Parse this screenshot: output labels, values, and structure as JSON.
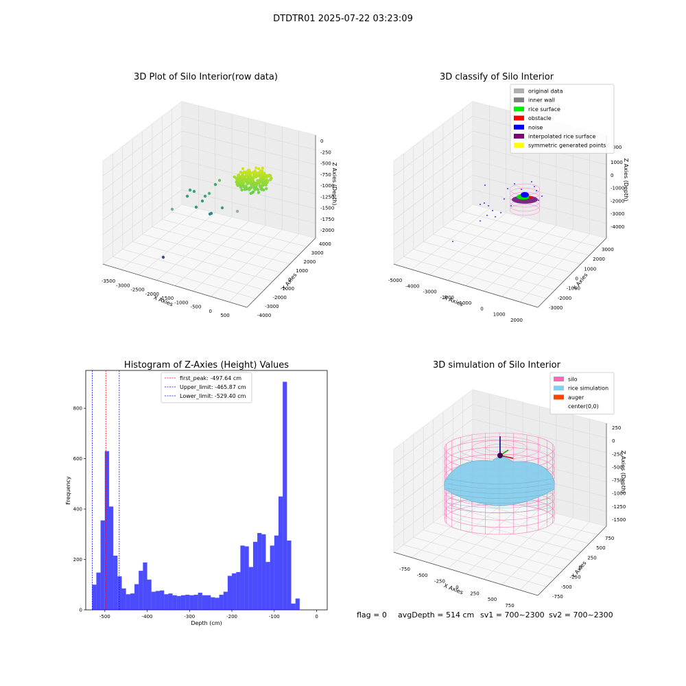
{
  "suptitle": "DTDTR01 2025-07-22 03:23:09",
  "panels": {
    "raw": {
      "title": "3D Plot of Silo Interior(row data)",
      "xlabel": "X Axies",
      "ylabel": "Y Axies",
      "zlabel": "Z Axies (Depth)",
      "xticks": [
        "-3500",
        "-3000",
        "-2500",
        "-2000",
        "-1500",
        "-1000",
        "-500",
        "0",
        "500"
      ],
      "yticks": [
        "-4000",
        "-3000",
        "-2000",
        "-1000",
        "0",
        "1000",
        "2000",
        "3000",
        "4000"
      ],
      "zticks": [
        "0",
        "-250",
        "-500",
        "-750",
        "-1000",
        "-1250",
        "-1500",
        "-1750",
        "-2000"
      ]
    },
    "classify": {
      "title": "3D classify of Silo Interior",
      "xlabel": "X Axies",
      "ylabel": "Y Axies",
      "zlabel": "Z Axies (Depth)",
      "xticks": [
        "-5000",
        "-4000",
        "-3000",
        "-2000",
        "-1000",
        "0",
        "1000",
        "2000"
      ],
      "yticks": [
        "-3000",
        "-2000",
        "-1000",
        "0",
        "1000",
        "2000",
        "3000"
      ],
      "zticks": [
        "1000",
        "0",
        "-1000",
        "-2000",
        "-3000",
        "-4000"
      ],
      "ztick_partial": "000",
      "legend": [
        {
          "label": "original data",
          "color": "#b0b0b0"
        },
        {
          "label": "inner wall",
          "color": "#808080"
        },
        {
          "label": "rice surface",
          "color": "#00ee00"
        },
        {
          "label": "obstacle",
          "color": "#ff0000"
        },
        {
          "label": "noise",
          "color": "#0000ff"
        },
        {
          "label": "interpolated rice surface",
          "color": "#800080"
        },
        {
          "label": "symmetric generated points",
          "color": "#ffff00"
        }
      ]
    },
    "simulation": {
      "title": "3D simulation of Silo Interior",
      "xlabel": "X Axies",
      "ylabel": "Y Axies",
      "zlabel": "Z Axies (Depth)",
      "xticks": [
        "-750",
        "-500",
        "-250",
        "0",
        "250",
        "500",
        "750"
      ],
      "yticks": [
        "-750",
        "-500",
        "-250",
        "0",
        "250",
        "500",
        "750"
      ],
      "zticks": [
        "250",
        "0",
        "-250",
        "-500",
        "-750",
        "-1000",
        "-1250",
        "-1500"
      ],
      "legend": [
        {
          "label": "silo",
          "color": "#ff69b4"
        },
        {
          "label": "rice simulation",
          "color": "#87ceeb"
        },
        {
          "label": "auger",
          "color": "#ff4500"
        },
        {
          "label": "center(0,0)",
          "color": "#ffffff"
        }
      ]
    }
  },
  "chart_data": {
    "type": "bar",
    "title": "Histogram of Z-Axies (Height) Values",
    "xlabel": "Depth (cm)",
    "ylabel": "Frequency",
    "xlim": [
      -545,
      25
    ],
    "ylim": [
      0,
      950
    ],
    "xticks": [
      -500,
      -400,
      -300,
      -200,
      -100,
      0
    ],
    "yticks": [
      0,
      200,
      400,
      600,
      800
    ],
    "bar_color": "#0000ff",
    "bin_start": -530,
    "bin_width": 10,
    "values": [
      100,
      148,
      355,
      630,
      410,
      215,
      133,
      85,
      62,
      65,
      102,
      155,
      188,
      120,
      72,
      75,
      77,
      62,
      65,
      58,
      55,
      58,
      60,
      58,
      60,
      68,
      58,
      58,
      50,
      48,
      60,
      72,
      135,
      145,
      150,
      255,
      252,
      170,
      270,
      305,
      300,
      190,
      255,
      295,
      450,
      905,
      275,
      25,
      45
    ],
    "vlines": [
      {
        "label": "first_peak: -497.64 cm",
        "x": -497.64,
        "color": "#ff0000"
      },
      {
        "label": "Upper_limit: -465.87 cm",
        "x": -465.87,
        "color": "#0000ff"
      },
      {
        "label": "Lower_limit: -529.40 cm",
        "x": -529.4,
        "color": "#0000ff"
      }
    ]
  },
  "footer": {
    "flag": "flag = 0",
    "avg": "avgDepth = 514 cm",
    "sv1": "sv1 = 700~2300",
    "sv2": "sv2 = 700~2300"
  }
}
